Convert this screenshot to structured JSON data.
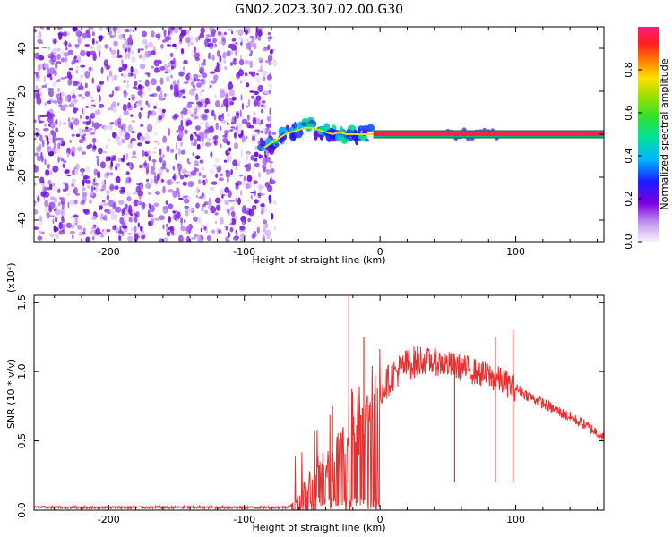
{
  "title": "GN02.2023.307.02.00.G30",
  "chart_data": [
    {
      "type": "heatmap",
      "xlabel": "Height of straight line (km)",
      "ylabel": "Frequency (Hz)",
      "xlim": [
        -255,
        165
      ],
      "ylim": [
        -50,
        50
      ],
      "xticks": [
        -200,
        -100,
        0,
        100
      ],
      "xtick_labels": [
        "-200",
        "-100",
        "0",
        "100"
      ],
      "yticks": [
        -40,
        -20,
        0,
        20,
        40
      ],
      "ytick_labels": [
        "-40",
        "-20",
        "0",
        "20",
        "40"
      ],
      "colorbar": {
        "label": "Normalized spectral amplitude",
        "range": [
          0,
          1
        ],
        "ticks": [
          0.0,
          0.2,
          0.4,
          0.6,
          0.8
        ],
        "tick_labels": [
          "0.0",
          "0.2",
          "0.4",
          "0.6",
          "0.8"
        ],
        "colormap": "rainbow-purple-to-red"
      },
      "noise_region_x": [
        -255,
        -80
      ],
      "signal_track": [
        {
          "x": -85,
          "y": -6
        },
        {
          "x": -80,
          "y": -4
        },
        {
          "x": -75,
          "y": -2
        },
        {
          "x": -70,
          "y": 0
        },
        {
          "x": -65,
          "y": 1
        },
        {
          "x": -60,
          "y": 2
        },
        {
          "x": -55,
          "y": 3
        },
        {
          "x": -50,
          "y": 3
        },
        {
          "x": -45,
          "y": 2
        },
        {
          "x": -40,
          "y": 1
        },
        {
          "x": -35,
          "y": 0
        },
        {
          "x": -30,
          "y": 1
        },
        {
          "x": -25,
          "y": 0
        },
        {
          "x": -20,
          "y": 0
        },
        {
          "x": -15,
          "y": 0
        },
        {
          "x": -10,
          "y": 0
        },
        {
          "x": 0,
          "y": 0
        },
        {
          "x": 165,
          "y": 0
        }
      ]
    },
    {
      "type": "line",
      "xlabel": "Height of straight line (km)",
      "ylabel": "SNR (10 * v/v)",
      "y_multiplier": "(x10⁴)",
      "xlim": [
        -255,
        165
      ],
      "ylim": [
        0,
        1.55
      ],
      "xticks": [
        -200,
        -100,
        0,
        100
      ],
      "xtick_labels": [
        "-200",
        "-100",
        "0",
        "100"
      ],
      "yticks": [
        0.0,
        0.5,
        1.0,
        1.5
      ],
      "ytick_labels": [
        "0.0",
        "0.5",
        "1.0",
        "1.5"
      ],
      "color": "#e83030",
      "series": [
        {
          "x": [
            -255,
            -200,
            -150,
            -100,
            -70,
            -60,
            -55,
            -50,
            -45,
            -40,
            -35,
            -30,
            -25,
            -20,
            -15,
            -10,
            -5,
            0,
            5,
            10,
            15,
            20,
            30,
            40,
            50,
            60,
            70,
            80,
            90,
            100,
            110,
            120,
            130,
            140,
            150,
            160,
            165
          ],
          "y": [
            0.02,
            0.02,
            0.02,
            0.02,
            0.02,
            0.05,
            0.15,
            0.25,
            0.3,
            0.35,
            0.4,
            0.45,
            0.5,
            0.6,
            0.65,
            0.7,
            0.75,
            0.85,
            0.92,
            0.98,
            1.02,
            1.05,
            1.08,
            1.07,
            1.05,
            1.03,
            1.0,
            0.97,
            0.93,
            0.88,
            0.82,
            0.77,
            0.72,
            0.67,
            0.62,
            0.56,
            0.53
          ],
          "spikes": [
            {
              "x": -23,
              "y": 1.55
            },
            {
              "x": -12,
              "y": 1.25
            },
            {
              "x": 85,
              "y": 1.25
            },
            {
              "x": 98,
              "y": 1.3
            },
            {
              "x": -35,
              "y": 0.75
            },
            {
              "x": 55,
              "y": 1.1
            }
          ]
        }
      ]
    }
  ]
}
